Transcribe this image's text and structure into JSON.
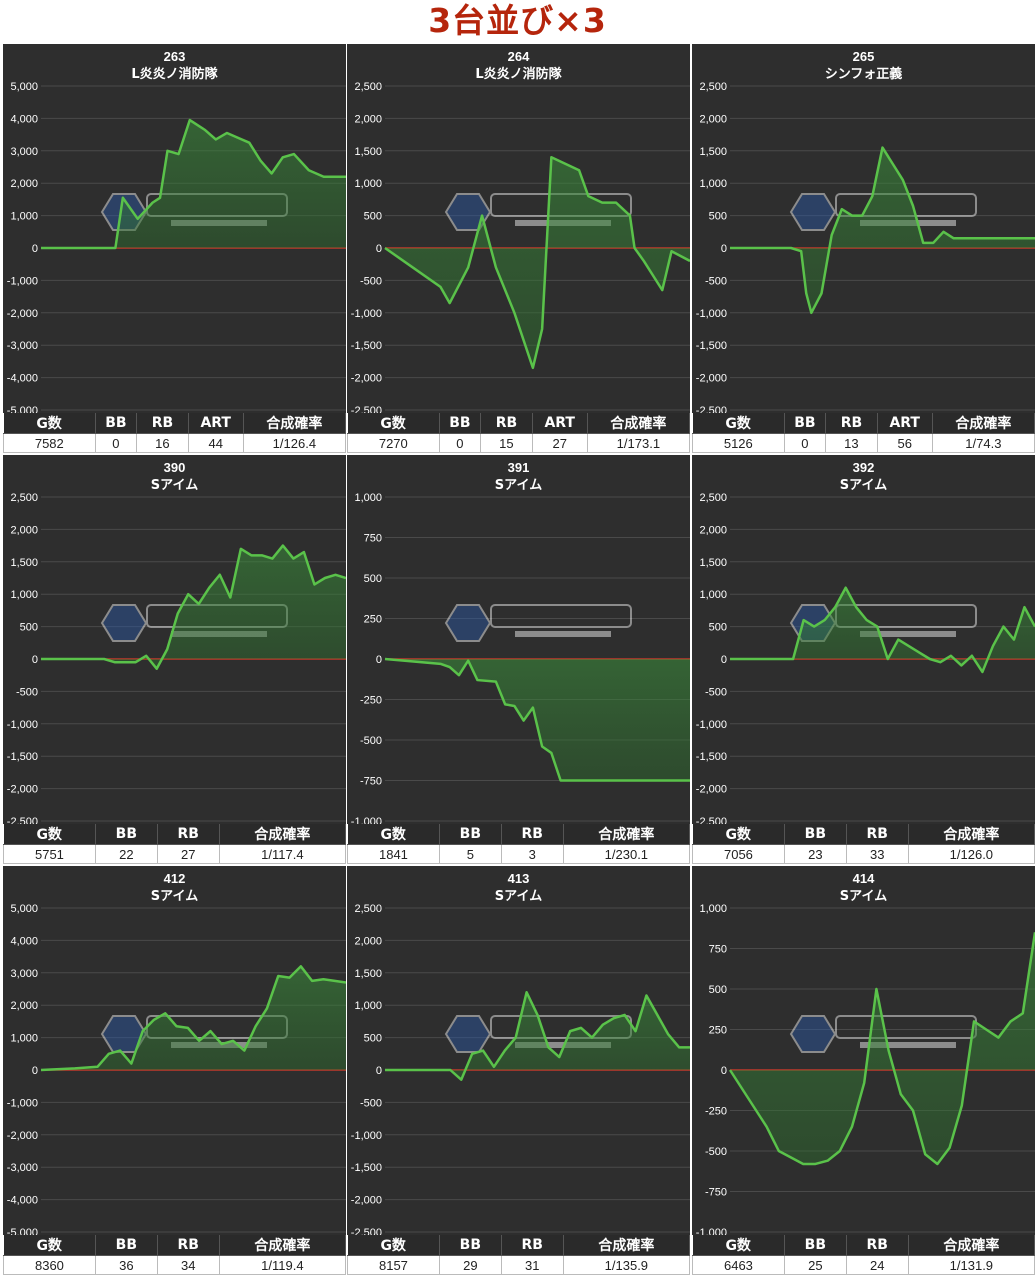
{
  "title": "3台並び×3",
  "chart_data": [
    {
      "type": "area",
      "machine_no": "263",
      "model": "L炎炎ノ消防隊",
      "ylim": [
        -5000,
        5000
      ],
      "yticks": [
        "5,000",
        "4,000",
        "3,000",
        "2,000",
        "1,000",
        "0",
        "-1,000",
        "-2,000",
        "-3,000",
        "-4,000",
        "-5,000"
      ],
      "x": [
        0,
        2.5,
        5,
        7,
        10,
        11,
        13,
        15,
        16,
        17,
        18.5,
        20,
        22,
        23.5,
        25,
        26.5,
        28,
        29.5,
        31,
        32.5,
        34,
        36,
        38,
        41
      ],
      "values": [
        0,
        0,
        0,
        0,
        0,
        1550,
        900,
        1400,
        1550,
        3000,
        2900,
        3950,
        3650,
        3350,
        3550,
        3400,
        3250,
        2700,
        2300,
        2800,
        2900,
        2400,
        2200,
        2200
      ],
      "stats_headers": [
        "G数",
        "BB",
        "RB",
        "ART",
        "合成確率"
      ],
      "stats_values": [
        "7582",
        "0",
        "16",
        "44",
        "1/126.4"
      ]
    },
    {
      "type": "area",
      "machine_no": "264",
      "model": "L炎炎ノ消防隊",
      "ylim": [
        -2500,
        2500
      ],
      "yticks": [
        "2,500",
        "2,000",
        "1,500",
        "1,000",
        "500",
        "0",
        "-500",
        "-1,000",
        "-1,500",
        "-2,000",
        "-2,500"
      ],
      "x": [
        0,
        3,
        6,
        7,
        9,
        10.5,
        12,
        14,
        16,
        17,
        18,
        19.5,
        21,
        22,
        23.5,
        25,
        26.5,
        27,
        28,
        30,
        31,
        33
      ],
      "values": [
        0,
        -300,
        -600,
        -850,
        -300,
        500,
        -300,
        -1000,
        -1850,
        -1250,
        1400,
        1300,
        1200,
        800,
        700,
        700,
        500,
        0,
        -200,
        -650,
        -50,
        -200
      ],
      "stats_headers": [
        "G数",
        "BB",
        "RB",
        "ART",
        "合成確率"
      ],
      "stats_values": [
        "7270",
        "0",
        "15",
        "27",
        "1/173.1"
      ]
    },
    {
      "type": "area",
      "machine_no": "265",
      "model": "シンフォ正義",
      "ylim": [
        -2500,
        2500
      ],
      "yticks": [
        "2,500",
        "2,000",
        "1,500",
        "1,000",
        "500",
        "0",
        "-500",
        "-1,000",
        "-1,500",
        "-2,000",
        "-2,500"
      ],
      "x": [
        0,
        3,
        6,
        7,
        7.5,
        8,
        9,
        10,
        11,
        12,
        13,
        14,
        15,
        16,
        17,
        18,
        19,
        20,
        21,
        22,
        23,
        25,
        27,
        30
      ],
      "values": [
        0,
        0,
        0,
        -50,
        -700,
        -1000,
        -700,
        200,
        600,
        500,
        500,
        800,
        1550,
        1300,
        1050,
        650,
        80,
        80,
        250,
        150,
        150,
        150,
        150,
        150
      ],
      "stats_headers": [
        "G数",
        "BB",
        "RB",
        "ART",
        "合成確率"
      ],
      "stats_values": [
        "5126",
        "0",
        "13",
        "56",
        "1/74.3"
      ]
    },
    {
      "type": "area",
      "machine_no": "390",
      "model": "Sアイム",
      "ylim": [
        -2500,
        2500
      ],
      "yticks": [
        "2,500",
        "2,000",
        "1,500",
        "1,000",
        "500",
        "0",
        "-500",
        "-1,000",
        "-1,500",
        "-2,000",
        "-2,500"
      ],
      "x": [
        0,
        3,
        6,
        7,
        8,
        9,
        10,
        11,
        12,
        13,
        14,
        15,
        16,
        17,
        18,
        19,
        20,
        21,
        22,
        23,
        24,
        25,
        26,
        27,
        28,
        29
      ],
      "values": [
        0,
        0,
        0,
        -50,
        -50,
        -50,
        50,
        -150,
        150,
        700,
        1000,
        850,
        1100,
        1300,
        950,
        1700,
        1600,
        1600,
        1550,
        1750,
        1550,
        1650,
        1150,
        1250,
        1300,
        1250
      ],
      "stats_headers": [
        "G数",
        "BB",
        "RB",
        "合成確率"
      ],
      "stats_values": [
        "5751",
        "22",
        "27",
        "1/117.4"
      ]
    },
    {
      "type": "area",
      "machine_no": "391",
      "model": "Sアイム",
      "ylim": [
        -1000,
        1000
      ],
      "yticks": [
        "1,000",
        "750",
        "500",
        "250",
        "0",
        "-250",
        "-500",
        "-750",
        "-1,000"
      ],
      "x": [
        0,
        4,
        6,
        7,
        8,
        9,
        10,
        12,
        13,
        14,
        15,
        16,
        17,
        18,
        19,
        20,
        21,
        25,
        33
      ],
      "values": [
        0,
        -20,
        -30,
        -50,
        -100,
        -10,
        -130,
        -140,
        -280,
        -290,
        -380,
        -300,
        -540,
        -580,
        -750,
        -750,
        -750,
        -750,
        -750
      ],
      "stats_headers": [
        "G数",
        "BB",
        "RB",
        "合成確率"
      ],
      "stats_values": [
        "1841",
        "5",
        "3",
        "1/230.1"
      ]
    },
    {
      "type": "area",
      "machine_no": "392",
      "model": "Sアイム",
      "ylim": [
        -2500,
        2500
      ],
      "yticks": [
        "2,500",
        "2,000",
        "1,500",
        "1,000",
        "500",
        "0",
        "-500",
        "-1,000",
        "-1,500",
        "-2,000",
        "-2,500"
      ],
      "x": [
        0,
        4,
        6,
        7,
        8,
        9,
        10,
        11,
        12,
        13,
        14,
        15,
        16,
        17,
        18,
        19,
        20,
        21,
        22,
        23,
        24,
        25,
        26,
        27,
        28,
        29
      ],
      "values": [
        0,
        0,
        0,
        600,
        500,
        600,
        800,
        1100,
        800,
        600,
        500,
        0,
        300,
        200,
        100,
        0,
        -50,
        50,
        -100,
        50,
        -200,
        200,
        500,
        300,
        800,
        500
      ],
      "stats_headers": [
        "G数",
        "BB",
        "RB",
        "合成確率"
      ],
      "stats_values": [
        "7056",
        "23",
        "33",
        "1/126.0"
      ]
    },
    {
      "type": "area",
      "machine_no": "412",
      "model": "Sアイム",
      "ylim": [
        -5000,
        5000
      ],
      "yticks": [
        "5,000",
        "4,000",
        "3,000",
        "2,000",
        "1,000",
        "0",
        "-1,000",
        "-2,000",
        "-3,000",
        "-4,000",
        "-5,000"
      ],
      "x": [
        0,
        3,
        5,
        6,
        7,
        8,
        9,
        10,
        11,
        12,
        13,
        14,
        15,
        16,
        17,
        18,
        19,
        20,
        21,
        22,
        23,
        24,
        25,
        26,
        27
      ],
      "values": [
        0,
        50,
        100,
        500,
        600,
        200,
        1200,
        1550,
        1750,
        1350,
        1300,
        900,
        1200,
        800,
        900,
        600,
        1350,
        1900,
        2900,
        2850,
        3200,
        2750,
        2800,
        2750,
        2700
      ],
      "stats_headers": [
        "G数",
        "BB",
        "RB",
        "合成確率"
      ],
      "stats_values": [
        "8360",
        "36",
        "34",
        "1/119.4"
      ]
    },
    {
      "type": "area",
      "machine_no": "413",
      "model": "Sアイム",
      "ylim": [
        -2500,
        2500
      ],
      "yticks": [
        "2,500",
        "2,000",
        "1,500",
        "1,000",
        "500",
        "0",
        "-500",
        "-1,000",
        "-1,500",
        "-2,000",
        "-2,500"
      ],
      "x": [
        0,
        4,
        6,
        7,
        8,
        9,
        10,
        11,
        12,
        13,
        14,
        15,
        16,
        17,
        18,
        19,
        20,
        21,
        22,
        23,
        24,
        25,
        26,
        27,
        28
      ],
      "values": [
        0,
        0,
        0,
        -150,
        250,
        300,
        50,
        300,
        500,
        1200,
        850,
        350,
        200,
        600,
        650,
        500,
        700,
        800,
        850,
        600,
        1150,
        850,
        550,
        350,
        350
      ],
      "stats_headers": [
        "G数",
        "BB",
        "RB",
        "合成確率"
      ],
      "stats_values": [
        "8157",
        "29",
        "31",
        "1/135.9"
      ]
    },
    {
      "type": "area",
      "machine_no": "414",
      "model": "Sアイム",
      "ylim": [
        -1000,
        1000
      ],
      "yticks": [
        "1,000",
        "750",
        "500",
        "250",
        "0",
        "-250",
        "-500",
        "-750",
        "-1,000"
      ],
      "x": [
        0,
        3,
        4,
        5,
        6,
        7,
        8,
        9,
        10,
        11,
        12,
        13,
        14,
        15,
        16,
        17,
        18,
        19,
        20,
        21,
        22,
        23,
        24,
        25
      ],
      "values": [
        0,
        -350,
        -500,
        -540,
        -580,
        -580,
        -560,
        -500,
        -350,
        -80,
        500,
        120,
        -150,
        -250,
        -520,
        -580,
        -480,
        -220,
        300,
        250,
        200,
        300,
        350,
        850
      ],
      "stats_headers": [
        "G数",
        "BB",
        "RB",
        "合成確率"
      ],
      "stats_values": [
        "6463",
        "25",
        "24",
        "1/131.9"
      ]
    }
  ]
}
